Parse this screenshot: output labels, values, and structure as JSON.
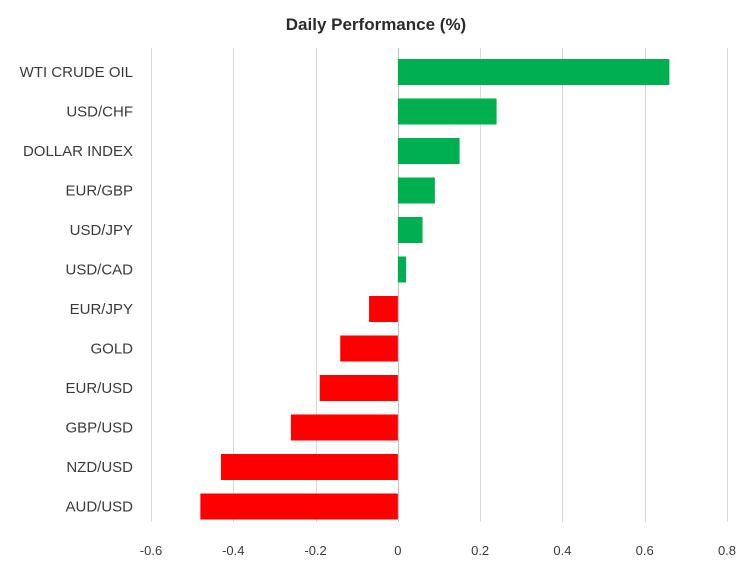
{
  "chart_data": {
    "type": "bar",
    "orientation": "horizontal",
    "title": "Daily Performance (%)",
    "xlabel": "",
    "ylabel": "",
    "categories": [
      "WTI CRUDE OIL",
      "USD/CHF",
      "DOLLAR INDEX",
      "EUR/GBP",
      "USD/JPY",
      "USD/CAD",
      "EUR/JPY",
      "GOLD",
      "EUR/USD",
      "GBP/USD",
      "NZD/USD",
      "AUD/USD"
    ],
    "values": [
      0.66,
      0.24,
      0.15,
      0.09,
      0.06,
      0.02,
      -0.07,
      -0.14,
      -0.19,
      -0.26,
      -0.43,
      -0.48
    ],
    "xlim": [
      -0.6,
      0.8
    ],
    "xticks": [
      -0.6,
      -0.4,
      -0.2,
      0,
      0.2,
      0.4,
      0.6,
      0.8
    ],
    "xtick_labels": [
      "-0.6",
      "-0.4",
      "-0.2",
      "0",
      "0.2",
      "0.4",
      "0.6",
      "0.8"
    ],
    "grid": true,
    "legend": "none",
    "colors": {
      "positive": "#00b050",
      "negative": "#ff0000",
      "grid": "#d9d9d9"
    }
  }
}
